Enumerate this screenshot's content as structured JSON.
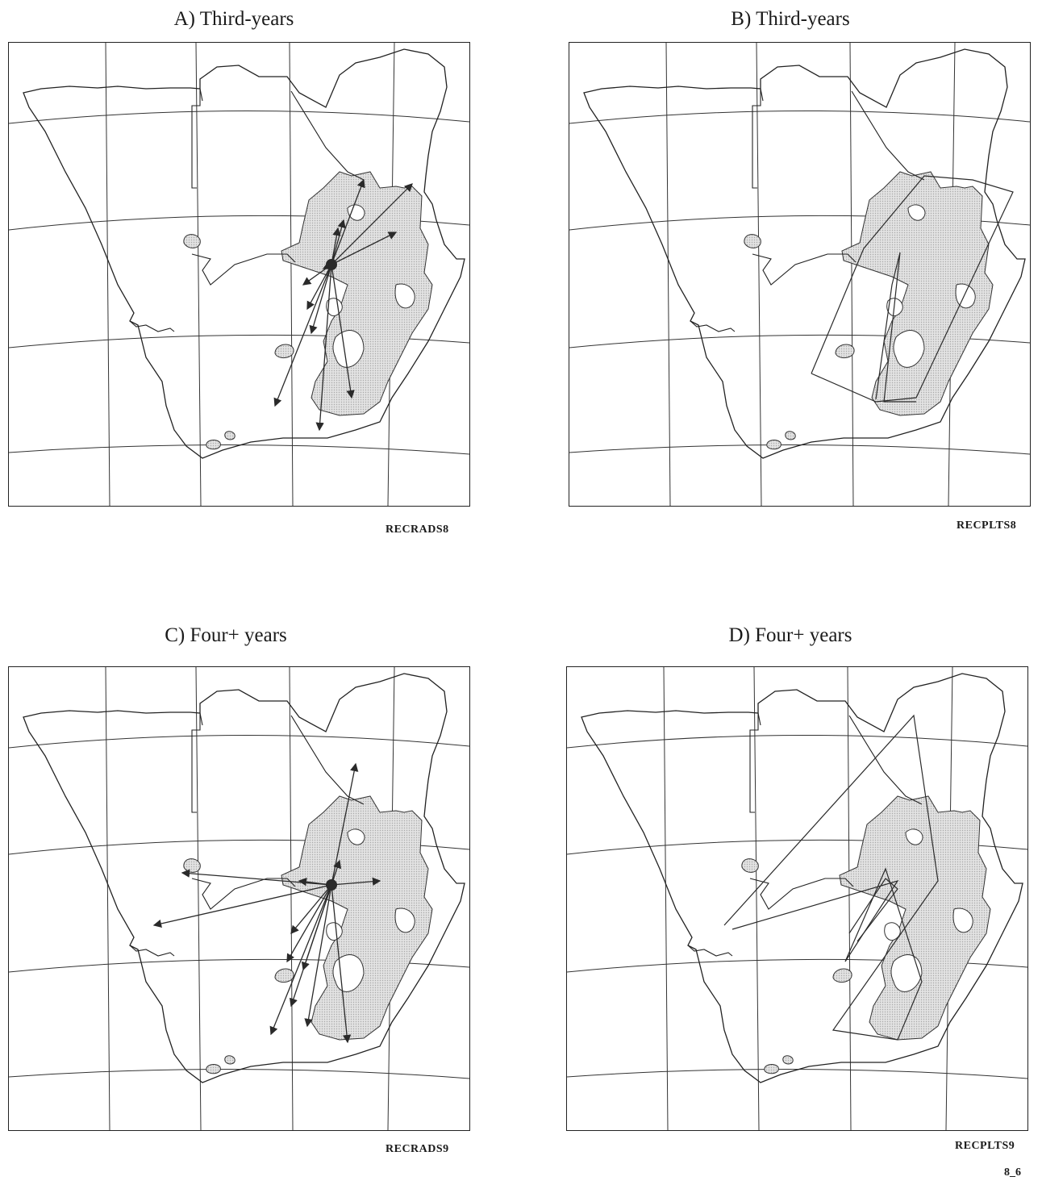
{
  "panels": [
    {
      "id": "A",
      "title": "A) Third-years",
      "code": "RECRADS8",
      "mode": "arrows",
      "set": "third"
    },
    {
      "id": "B",
      "title": "B) Third-years",
      "code": "RECPLTS8",
      "mode": "lines",
      "set": "third"
    },
    {
      "id": "C",
      "title": "C) Four+ years",
      "code": "RECRADS9",
      "mode": "arrows",
      "set": "four"
    },
    {
      "id": "D",
      "title": "D) Four+ years",
      "code": "RECPLTS9",
      "mode": "lines",
      "set": "four"
    }
  ],
  "page_number": "8_6",
  "colors": {
    "stipple": "#a9a9a9",
    "line": "#2a2a2a"
  }
}
